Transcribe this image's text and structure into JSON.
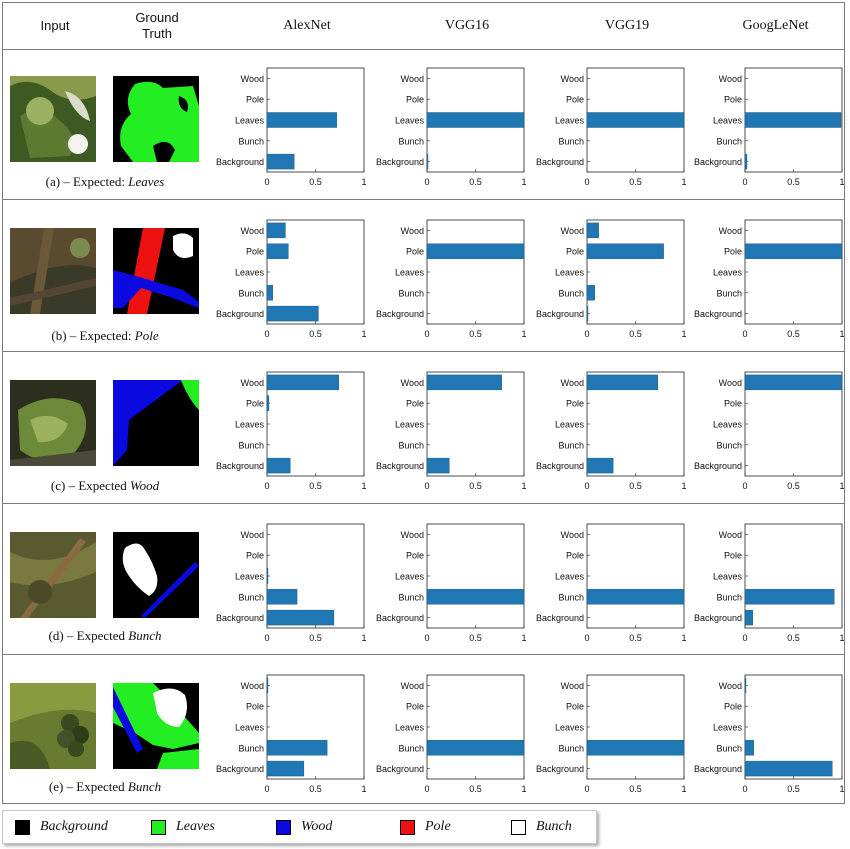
{
  "headers": {
    "input": "Input",
    "ground_truth_line1": "Ground",
    "ground_truth_line2": "Truth",
    "models": [
      "AlexNet",
      "VGG16",
      "VGG19",
      "GoogLeNet"
    ]
  },
  "rows": [
    {
      "prefix": "(a) – Expected: ",
      "label": "Leaves"
    },
    {
      "prefix": "(b) – Expected: ",
      "label": "Pole"
    },
    {
      "prefix": "(c) – Expected ",
      "label": "Wood"
    },
    {
      "prefix": "(d) – Expected ",
      "label": "Bunch"
    },
    {
      "prefix": "(e) – Expected ",
      "label": "Bunch"
    }
  ],
  "colors": {
    "bar": "#1f77b4",
    "background": "#000000",
    "leaves": "#22ee22",
    "wood": "#0a0ae0",
    "pole": "#ee1111",
    "bunch": "#ffffff"
  },
  "legend": [
    {
      "label": "Background",
      "color": "#000000"
    },
    {
      "label": "Leaves",
      "color": "#22ee22"
    },
    {
      "label": "Wood",
      "color": "#0a0ae0"
    },
    {
      "label": "Pole",
      "color": "#ee1111"
    },
    {
      "label": "Bunch",
      "color": "#ffffff"
    }
  ],
  "chart_data": {
    "type": "bar",
    "orientation": "horizontal",
    "categories": [
      "Wood",
      "Pole",
      "Leaves",
      "Bunch",
      "Background"
    ],
    "xlim": [
      0,
      1
    ],
    "xticks": [
      "0",
      "0.5",
      "1"
    ],
    "grid": false,
    "rows": [
      {
        "expected": "Leaves",
        "models": [
          {
            "model": "AlexNet",
            "values": [
              0,
              0,
              0.72,
              0,
              0.28
            ]
          },
          {
            "model": "VGG16",
            "values": [
              0,
              0,
              1.0,
              0,
              0.01
            ]
          },
          {
            "model": "VGG19",
            "values": [
              0,
              0,
              1.0,
              0,
              0
            ]
          },
          {
            "model": "GoogLeNet",
            "values": [
              0,
              0,
              0.99,
              0,
              0.02
            ]
          }
        ]
      },
      {
        "expected": "Pole",
        "models": [
          {
            "model": "AlexNet",
            "values": [
              0.19,
              0.22,
              0,
              0.06,
              0.53
            ]
          },
          {
            "model": "VGG16",
            "values": [
              0,
              1.0,
              0,
              0,
              0
            ]
          },
          {
            "model": "VGG19",
            "values": [
              0.12,
              0.79,
              0,
              0.08,
              0.01
            ]
          },
          {
            "model": "GoogLeNet",
            "values": [
              0,
              1.0,
              0,
              0,
              0
            ]
          }
        ]
      },
      {
        "expected": "Wood",
        "models": [
          {
            "model": "AlexNet",
            "values": [
              0.74,
              0.02,
              0,
              0,
              0.24
            ]
          },
          {
            "model": "VGG16",
            "values": [
              0.77,
              0,
              0,
              0,
              0.23
            ]
          },
          {
            "model": "VGG19",
            "values": [
              0.73,
              0,
              0,
              0,
              0.27
            ]
          },
          {
            "model": "GoogLeNet",
            "values": [
              1.0,
              0,
              0,
              0,
              0
            ]
          }
        ]
      },
      {
        "expected": "Bunch",
        "models": [
          {
            "model": "AlexNet",
            "values": [
              0,
              0,
              0.01,
              0.31,
              0.69
            ]
          },
          {
            "model": "VGG16",
            "values": [
              0,
              0,
              0,
              1.0,
              0
            ]
          },
          {
            "model": "VGG19",
            "values": [
              0,
              0,
              0,
              1.0,
              0
            ]
          },
          {
            "model": "GoogLeNet",
            "values": [
              0,
              0,
              0,
              0.92,
              0.08
            ]
          }
        ]
      },
      {
        "expected": "Bunch",
        "models": [
          {
            "model": "AlexNet",
            "values": [
              0.01,
              0,
              0,
              0.62,
              0.38
            ]
          },
          {
            "model": "VGG16",
            "values": [
              0,
              0,
              0,
              1.0,
              0
            ]
          },
          {
            "model": "VGG19",
            "values": [
              0,
              0,
              0,
              1.0,
              0
            ]
          },
          {
            "model": "GoogLeNet",
            "values": [
              0.01,
              0,
              0,
              0.09,
              0.9
            ]
          }
        ]
      }
    ]
  }
}
